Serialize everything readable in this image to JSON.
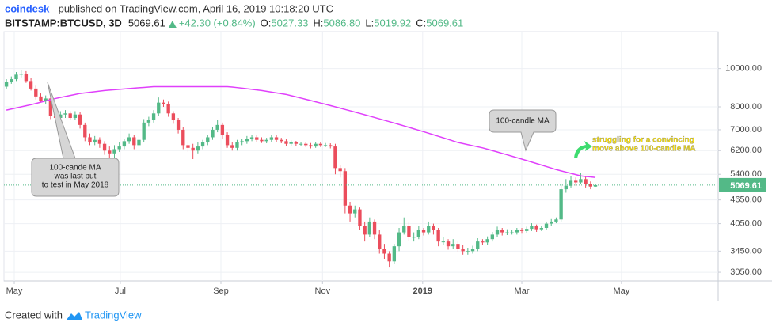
{
  "chart_data": {
    "type": "candlestick",
    "author": "coindesk_",
    "title": "published on TradingView.com, April 16, 2019 10:18:20 UTC",
    "symbol": "BITSTAMP:BTCUSD, 3D",
    "last_price": 5069.61,
    "change": "+42.30 (+0.84%)",
    "ohlc_header": [
      {
        "label": "O:",
        "value": "5027.33"
      },
      {
        "label": "H:",
        "value": "5086.80"
      },
      {
        "label": "L:",
        "value": "5019.92"
      },
      {
        "label": "C:",
        "value": "5069.61"
      }
    ],
    "footer": {
      "prefix": "Created with",
      "brand": "TradingView"
    },
    "log_scale": true,
    "grid": true,
    "up_color": "#53b987",
    "down_color": "#eb4d5c",
    "xlim": [
      -0.5,
      145
    ],
    "xticks": [
      {
        "value": 1.6,
        "label": "May"
      },
      {
        "value": 23.2,
        "label": "Jul"
      },
      {
        "value": 43.7,
        "label": "Sep"
      },
      {
        "value": 64.4,
        "label": "Nov"
      },
      {
        "value": 84.8,
        "label": "2019"
      },
      {
        "value": 105,
        "label": "Mar"
      },
      {
        "value": 125.3,
        "label": "May"
      }
    ],
    "ylim": [
      2900,
      12400
    ],
    "yticks": [
      {
        "value": 10000,
        "label": "10000.00"
      },
      {
        "value": 8000,
        "label": "8000.00"
      },
      {
        "value": 7000,
        "label": "7000.00"
      },
      {
        "value": 6200,
        "label": "6200.00"
      },
      {
        "value": 5400,
        "label": "5400.00"
      },
      {
        "value": 4650,
        "label": "4650.00"
      },
      {
        "value": 4050,
        "label": "4050.00"
      },
      {
        "value": 3450,
        "label": "3450.00"
      },
      {
        "value": 3050,
        "label": "3050.00"
      }
    ],
    "open": [
      9000,
      9250,
      9400,
      9650,
      9700,
      9300,
      8900,
      8500,
      8300,
      8400,
      7600,
      7500,
      7650,
      7700,
      7500,
      7650,
      7200,
      6700,
      6500,
      6600,
      6450,
      6200,
      6100,
      6250,
      6350,
      6550,
      6700,
      6400,
      6600,
      7300,
      7400,
      7700,
      8200,
      8150,
      7700,
      7400,
      7000,
      6400,
      6300,
      6200,
      6350,
      6500,
      6700,
      7000,
      7200,
      6800,
      6400,
      6300,
      6500,
      6550,
      6650,
      6700,
      6600,
      6550,
      6600,
      6700,
      6600,
      6550,
      6450,
      6500,
      6450,
      6450,
      6400,
      6350,
      6450,
      6400,
      6400,
      6350,
      5600,
      5500,
      4500,
      4300,
      4400,
      4000,
      3800,
      4100,
      3800,
      3500,
      3400,
      3250,
      3550,
      3850,
      4000,
      3750,
      3750,
      3900,
      3850,
      4000,
      3900,
      3650,
      3650,
      3550,
      3600,
      3500,
      3450,
      3450,
      3500,
      3650,
      3630,
      3700,
      3800,
      3900,
      3850,
      3850,
      3850,
      3900,
      3880,
      3930,
      4000,
      3920,
      3950,
      4050,
      4100,
      4150,
      4950,
      5050,
      5200,
      5150,
      5250,
      5100,
      5027.33
    ],
    "high": [
      9400,
      9550,
      9800,
      9900,
      9850,
      9450,
      9050,
      8650,
      8550,
      8500,
      7750,
      7800,
      7850,
      7800,
      7800,
      7750,
      7300,
      6850,
      6750,
      6700,
      6550,
      6350,
      6400,
      6500,
      6650,
      6850,
      6800,
      6750,
      7450,
      7550,
      7850,
      8450,
      8350,
      8250,
      7800,
      7500,
      7100,
      6500,
      6450,
      6500,
      6600,
      6800,
      7100,
      7400,
      7300,
      6900,
      6500,
      6600,
      6650,
      6750,
      6800,
      6780,
      6700,
      6680,
      6780,
      6780,
      6680,
      6620,
      6580,
      6560,
      6520,
      6520,
      6480,
      6520,
      6520,
      6480,
      6470,
      6450,
      5700,
      5600,
      4600,
      4500,
      4450,
      4100,
      4200,
      4150,
      3900,
      3600,
      3450,
      3600,
      3950,
      4200,
      4100,
      3850,
      4000,
      3950,
      4100,
      4050,
      3950,
      3750,
      3700,
      3700,
      3650,
      3580,
      3520,
      3560,
      3720,
      3700,
      3760,
      3860,
      3980,
      3950,
      3920,
      3900,
      3950,
      3950,
      3980,
      4060,
      4030,
      4000,
      4100,
      4160,
      4200,
      5100,
      5250,
      5350,
      5300,
      5450,
      5320,
      5180,
      5086.8
    ],
    "low": [
      8900,
      9150,
      9300,
      9500,
      9200,
      8800,
      8350,
      8200,
      8150,
      7450,
      7350,
      7400,
      7500,
      7400,
      7400,
      7050,
      6550,
      6400,
      6400,
      6300,
      6050,
      5800,
      5950,
      6150,
      6250,
      6450,
      6250,
      6300,
      6500,
      7150,
      7300,
      7600,
      8000,
      7550,
      7250,
      6850,
      6250,
      6150,
      5900,
      6100,
      6250,
      6400,
      6600,
      6900,
      6650,
      6300,
      6200,
      6200,
      6400,
      6450,
      6550,
      6500,
      6480,
      6470,
      6520,
      6520,
      6470,
      6380,
      6380,
      6380,
      6380,
      6330,
      6280,
      6300,
      6330,
      6330,
      6280,
      5400,
      5300,
      4300,
      4100,
      4200,
      3900,
      3650,
      3750,
      3700,
      3400,
      3300,
      3150,
      3200,
      3450,
      3800,
      3650,
      3650,
      3700,
      3780,
      3800,
      3800,
      3550,
      3580,
      3480,
      3500,
      3430,
      3380,
      3380,
      3400,
      3450,
      3570,
      3580,
      3650,
      3750,
      3780,
      3790,
      3800,
      3800,
      3820,
      3840,
      3880,
      3860,
      3880,
      3900,
      4000,
      4060,
      4100,
      4850,
      5000,
      5050,
      5100,
      5000,
      4950,
      5019.92
    ],
    "close": [
      9250,
      9400,
      9650,
      9700,
      9300,
      8900,
      8500,
      8300,
      8400,
      7600,
      7500,
      7650,
      7700,
      7500,
      7650,
      7200,
      6700,
      6500,
      6600,
      6450,
      6200,
      6100,
      6250,
      6350,
      6550,
      6700,
      6400,
      6600,
      7300,
      7400,
      7700,
      8200,
      8150,
      7700,
      7400,
      7000,
      6400,
      6300,
      6200,
      6350,
      6500,
      6700,
      7000,
      7200,
      6800,
      6400,
      6300,
      6500,
      6550,
      6650,
      6700,
      6600,
      6550,
      6600,
      6700,
      6600,
      6550,
      6450,
      6500,
      6450,
      6450,
      6400,
      6350,
      6450,
      6400,
      6400,
      6350,
      5600,
      5500,
      4500,
      4300,
      4400,
      4000,
      3800,
      4100,
      3800,
      3500,
      3400,
      3250,
      3550,
      3850,
      4000,
      3750,
      3750,
      3900,
      3850,
      4000,
      3900,
      3650,
      3650,
      3550,
      3600,
      3500,
      3450,
      3450,
      3500,
      3650,
      3630,
      3700,
      3800,
      3900,
      3850,
      3850,
      3850,
      3900,
      3880,
      3930,
      4000,
      3920,
      3950,
      4050,
      4100,
      4150,
      4950,
      5050,
      5200,
      5150,
      5250,
      5100,
      5027.33,
      5069.61
    ],
    "ma": {
      "color": "#e040fb",
      "values": [
        7850,
        7900,
        7950,
        8000,
        8050,
        8100,
        8160,
        8220,
        8280,
        8340,
        8400,
        8450,
        8500,
        8550,
        8600,
        8650,
        8680,
        8710,
        8740,
        8770,
        8800,
        8820,
        8840,
        8860,
        8880,
        8900,
        8920,
        8940,
        8960,
        8980,
        9000,
        9000,
        9000,
        9000,
        9000,
        9000,
        9000,
        9000,
        9000,
        9000,
        9000,
        9000,
        9000,
        9000,
        9000,
        9000,
        8980,
        8950,
        8920,
        8890,
        8860,
        8830,
        8800,
        8760,
        8720,
        8680,
        8640,
        8600,
        8540,
        8480,
        8420,
        8360,
        8300,
        8240,
        8180,
        8120,
        8060,
        8000,
        7940,
        7880,
        7820,
        7760,
        7700,
        7640,
        7580,
        7520,
        7460,
        7400,
        7340,
        7280,
        7220,
        7160,
        7100,
        7040,
        6980,
        6920,
        6860,
        6800,
        6740,
        6680,
        6620,
        6560,
        6500,
        6460,
        6420,
        6380,
        6340,
        6300,
        6250,
        6200,
        6150,
        6100,
        6050,
        6000,
        5950,
        5900,
        5850,
        5800,
        5750,
        5700,
        5650,
        5600,
        5550,
        5510,
        5470,
        5430,
        5390,
        5350,
        5330,
        5320,
        5300
      ]
    },
    "annotations": [
      {
        "lines": [
          "100-cande MA",
          "was last put",
          "to test in May 2018"
        ]
      },
      {
        "lines": [
          "100-candle MA"
        ]
      },
      {
        "lines": [
          "struggling for a convincing",
          "move above 100-candle MA"
        ]
      }
    ]
  }
}
